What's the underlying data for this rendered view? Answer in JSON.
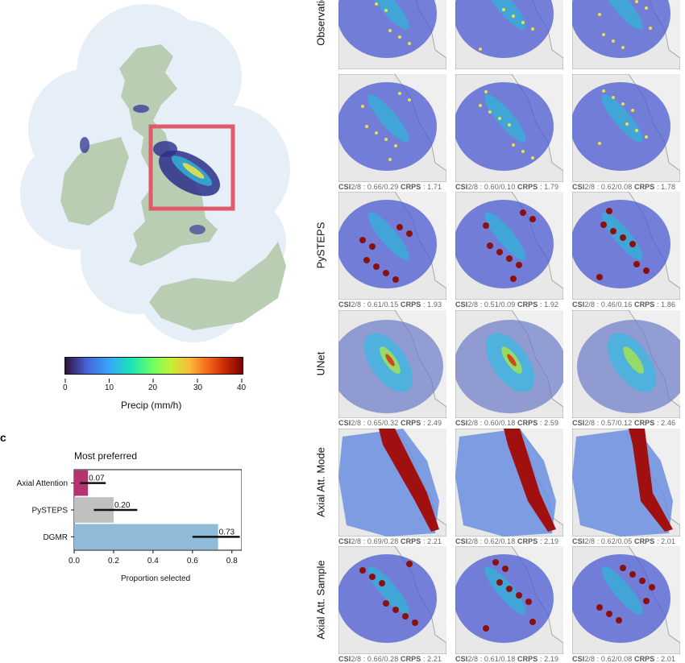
{
  "panel_letters": {
    "c": "c"
  },
  "colorbar": {
    "label": "Precip (mm/h)",
    "ticks": [
      "0",
      "10",
      "20",
      "30",
      "40"
    ],
    "min": 0,
    "max": 40
  },
  "map": {
    "land_color": "#b9cdb3",
    "sea_color": "#e6eff7",
    "box_color": "#e05a6a"
  },
  "grid": {
    "row_labels": [
      "Observations",
      "",
      "PySTEPS",
      "UNet",
      "Axial Att. Mode",
      "Axial Att. Sample"
    ],
    "captions": [
      [
        "",
        "",
        ""
      ],
      [
        {
          "csi": "CSI",
          "thr": "2/8 : 0.66/0.29",
          "crps": "CRPS",
          "val": ": 1.71"
        },
        {
          "csi": "CSI",
          "thr": "2/8 : 0.60/0.10",
          "crps": "CRPS",
          "val": ": 1.79"
        },
        {
          "csi": "CSI",
          "thr": "2/8 : 0.62/0.08",
          "crps": "CRPS",
          "val": ": 1.78"
        }
      ],
      [
        {
          "csi": "CSI",
          "thr": "2/8 : 0.61/0.15",
          "crps": "CRPS",
          "val": ": 1.93"
        },
        {
          "csi": "CSI",
          "thr": "2/8 : 0.51/0.09",
          "crps": "CRPS",
          "val": ": 1.92"
        },
        {
          "csi": "CSI",
          "thr": "2/8 : 0.46/0.16",
          "crps": "CRPS",
          "val": ": 1.86"
        }
      ],
      [
        {
          "csi": "CSI",
          "thr": "2/8 : 0.65/0.32",
          "crps": "CRPS",
          "val": ": 2.49"
        },
        {
          "csi": "CSI",
          "thr": "2/8 : 0.60/0.18",
          "crps": "CRPS",
          "val": ": 2.59"
        },
        {
          "csi": "CSI",
          "thr": "2/8 : 0.57/0.12",
          "crps": "CRPS",
          "val": ": 2.46"
        }
      ],
      [
        {
          "csi": "CSI",
          "thr": "2/8 : 0.69/0.28",
          "crps": "CRPS",
          "val": ": 2.21"
        },
        {
          "csi": "CSI",
          "thr": "2/8 : 0.62/0.18",
          "crps": "CRPS",
          "val": ": 2.19"
        },
        {
          "csi": "CSI",
          "thr": "2/8 : 0.62/0.05",
          "crps": "CRPS",
          "val": ": 2.01"
        }
      ],
      [
        {
          "csi": "CSI",
          "thr": "2/8 : 0.66/0.28",
          "crps": "CRPS",
          "val": ": 2.21"
        },
        {
          "csi": "CSI",
          "thr": "2/8 : 0.61/0.18",
          "crps": "CRPS",
          "val": ": 2.19"
        },
        {
          "csi": "CSI",
          "thr": "2/8 : 0.62/0.08",
          "crps": "CRPS",
          "val": ": 2.01"
        }
      ]
    ]
  },
  "chart_data": {
    "type": "bar",
    "orientation": "horizontal",
    "title": "Most preferred",
    "xlabel": "Proportion selected",
    "ylabel": "",
    "xlim": [
      0,
      0.85
    ],
    "xticks": [
      "0.0",
      "0.2",
      "0.4",
      "0.6",
      "0.8"
    ],
    "categories": [
      "Axial Attention",
      "PySTEPS",
      "DGMR"
    ],
    "values": [
      0.07,
      0.2,
      0.73
    ],
    "value_labels": [
      "0.07",
      "0.20",
      "0.73"
    ],
    "error_low": [
      0.03,
      0.1,
      0.6
    ],
    "error_high": [
      0.16,
      0.32,
      0.84
    ],
    "colors": [
      "#b5336f",
      "#c0c0c0",
      "#8fbbd9"
    ],
    "grid": false,
    "legend": "none"
  }
}
